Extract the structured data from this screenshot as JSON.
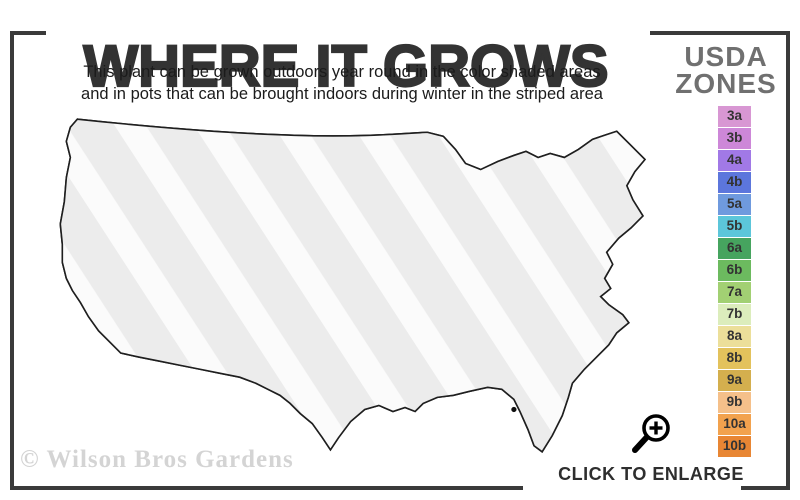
{
  "header": {
    "title": "WHERE IT GROWS",
    "subtitle_line1": "This plant can be grown outdoors year round in the color shaded areas",
    "subtitle_line2": "and in pots that can be brought indoors during winter in the striped area"
  },
  "legend": {
    "title_line1": "USDA",
    "title_line2": "ZONES",
    "zones": [
      {
        "label": "3a",
        "color": "#d897d3"
      },
      {
        "label": "3b",
        "color": "#cd87d8"
      },
      {
        "label": "4a",
        "color": "#a179e6"
      },
      {
        "label": "4b",
        "color": "#5c76dc"
      },
      {
        "label": "5a",
        "color": "#6f9ade"
      },
      {
        "label": "5b",
        "color": "#5cc6da"
      },
      {
        "label": "6a",
        "color": "#46a45f"
      },
      {
        "label": "6b",
        "color": "#6cba5f"
      },
      {
        "label": "7a",
        "color": "#a2d073"
      },
      {
        "label": "7b",
        "color": "#dcedbc"
      },
      {
        "label": "8a",
        "color": "#ecdf9a"
      },
      {
        "label": "8b",
        "color": "#e3c25c"
      },
      {
        "label": "9a",
        "color": "#d4af4e"
      },
      {
        "label": "9b",
        "color": "#f5c08a"
      },
      {
        "label": "10a",
        "color": "#f2a24e"
      },
      {
        "label": "10b",
        "color": "#e88634"
      }
    ]
  },
  "map": {
    "colors": {
      "stripe_gray": "#ececec",
      "stripe_white": "#fbfbfb",
      "outline": "#1f1f1f",
      "state_line": "#1c1c1c",
      "green": "#8cc863",
      "pale_green": "#dcedb8",
      "pale_yellow": "#eee09a",
      "gold": "#e3c25f",
      "tan": "#d0a94f",
      "peach": "#f5bd88",
      "orange": "#f09a4c",
      "deep_orange": "#e8843a",
      "coast_gold": "#e8cb6d",
      "valley_yellow": "#ead77e",
      "coast_salmon": "#f0a264",
      "socal_orange": "#ef9350",
      "dot": "#111111",
      "lake": "#ffffff"
    }
  },
  "footer": {
    "watermark": "© Wilson Bros Gardens",
    "cta": "CLICK TO ENLARGE",
    "zoom_icon": "magnifier-plus-icon"
  },
  "frame": {
    "color": "#3a3a3a"
  }
}
